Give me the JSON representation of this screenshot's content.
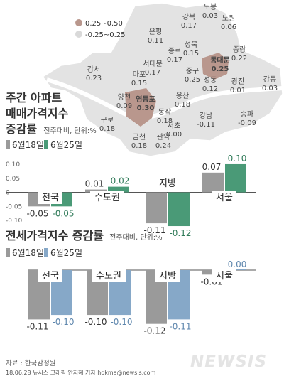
{
  "map": {
    "legend": [
      {
        "label": "0.25~0.50",
        "color": "#b9978d"
      },
      {
        "label": "-0.25~0.25",
        "color": "#d9d9d9"
      }
    ],
    "districts": [
      {
        "name": "도봉",
        "value": "0.03"
      },
      {
        "name": "강북",
        "value": "0.17"
      },
      {
        "name": "노원",
        "value": "0.06"
      },
      {
        "name": "은평",
        "value": "0.11"
      },
      {
        "name": "성북",
        "value": "0.15"
      },
      {
        "name": "중랑",
        "value": "0.22"
      },
      {
        "name": "종로",
        "value": "0.17"
      },
      {
        "name": "동대문",
        "value": "0.25",
        "highlight": true
      },
      {
        "name": "서대문",
        "value": "0.17"
      },
      {
        "name": "강서",
        "value": "0.23"
      },
      {
        "name": "마포",
        "value": "0.15"
      },
      {
        "name": "중구",
        "value": "0.25"
      },
      {
        "name": "성동",
        "value": "0.12"
      },
      {
        "name": "광진",
        "value": "0.01"
      },
      {
        "name": "강동",
        "value": "0.03"
      },
      {
        "name": "양천",
        "value": "0.09"
      },
      {
        "name": "영등포",
        "value": "0.30",
        "highlight": true
      },
      {
        "name": "용산",
        "value": "0.18"
      },
      {
        "name": "동작",
        "value": "0.18"
      },
      {
        "name": "구로",
        "value": "0.18"
      },
      {
        "name": "강남",
        "value": "-0.11"
      },
      {
        "name": "송파",
        "value": "-0.09"
      },
      {
        "name": "서초",
        "value": "0.00"
      },
      {
        "name": "금천",
        "value": "0.18"
      },
      {
        "name": "관악",
        "value": "0.24"
      }
    ]
  },
  "chart1": {
    "title_line1": "주간 아파트",
    "title_line2": "매매가격지수",
    "title_line3": "증감률",
    "subtitle": "전주대비, 단위:%",
    "legend": [
      {
        "label": "6월18일",
        "color": "#9a9a9a"
      },
      {
        "label": "6월25일",
        "color": "#4a9a77"
      }
    ],
    "yticks": [
      "0.10",
      "0.05",
      "0",
      "-0.05",
      "-0.10"
    ]
  },
  "chart2": {
    "title": "전세가격지수 증감률",
    "subtitle": "전주대비, 단위:%",
    "legend": [
      {
        "label": "6월18일",
        "color": "#9a9a9a"
      },
      {
        "label": "6월25일",
        "color": "#86a8c8"
      }
    ]
  },
  "chart_data": [
    {
      "type": "bar",
      "title": "주간 아파트 매매가격지수 증감률",
      "categories": [
        "전국",
        "수도권",
        "지방",
        "서울"
      ],
      "series": [
        {
          "name": "6월18일",
          "values": [
            -0.05,
            0.01,
            -0.11,
            0.07
          ],
          "labels": [
            "-0.05",
            "0.01",
            "-0.11",
            "0.07"
          ]
        },
        {
          "name": "6월25일",
          "values": [
            -0.05,
            0.02,
            -0.12,
            0.1
          ],
          "labels": [
            "-0.05",
            "0.02",
            "-0.12",
            "0.10"
          ]
        }
      ],
      "ylim": [
        -0.13,
        0.11
      ],
      "grid": false
    },
    {
      "type": "bar",
      "title": "전세가격지수 증감률",
      "categories": [
        "전국",
        "수도권",
        "지방",
        "서울"
      ],
      "series": [
        {
          "name": "6월18일",
          "values": [
            -0.11,
            -0.1,
            -0.12,
            -0.01
          ],
          "labels": [
            "-0.11",
            "-0.10",
            "-0.12",
            "-0.01"
          ]
        },
        {
          "name": "6월25일",
          "values": [
            -0.1,
            -0.1,
            -0.11,
            0.0
          ],
          "labels": [
            "-0.10",
            "-0.10",
            "-0.11",
            "0.00"
          ]
        }
      ],
      "ylim": [
        -0.13,
        0.0
      ],
      "grid": false
    }
  ],
  "footer": {
    "source": "자료 : 한국감정원",
    "credit": "18.06.28 뉴시스 그래픽 안지혜 기자 hokma@newsis.com",
    "logo": "NEWSIS"
  }
}
